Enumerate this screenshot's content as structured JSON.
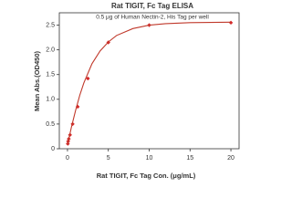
{
  "chart_data": {
    "type": "scatter",
    "title": "Rat TIGIT, Fc Tag ELISA",
    "subtitle": "0.5 μg of Human Nectin-2, His Tag per well",
    "x_label": "Rat TIGIT, Fc Tag Con. (μg/mL)",
    "y_label": "Mean Abs.(OD450)",
    "xlim": [
      -1,
      21
    ],
    "xticks": [
      0,
      5,
      10,
      15,
      20
    ],
    "ylim": [
      0,
      2.75
    ],
    "yticks": [
      0,
      0.5,
      {
        "value": 1,
        "label": "1.0"
      },
      1.5,
      {
        "value": 2,
        "label": "2.0"
      },
      2.5
    ],
    "series": [
      {
        "color": "#d62728",
        "style": "points",
        "x": [
          0.04,
          0.08,
          0.16,
          0.31,
          0.63,
          1.25,
          2.5,
          5,
          10,
          20
        ],
        "values": [
          0.1,
          0.15,
          0.2,
          0.28,
          0.5,
          0.85,
          1.42,
          2.15,
          2.5,
          2.55
        ]
      },
      {
        "color": "#c0392b",
        "style": "line",
        "x": [
          0,
          0.5,
          1,
          1.5,
          2,
          3,
          4,
          5,
          6,
          8,
          10,
          12,
          15,
          20
        ],
        "values": [
          0.08,
          0.45,
          0.78,
          1.08,
          1.33,
          1.72,
          1.98,
          2.16,
          2.29,
          2.43,
          2.5,
          2.53,
          2.55,
          2.56
        ]
      }
    ]
  }
}
